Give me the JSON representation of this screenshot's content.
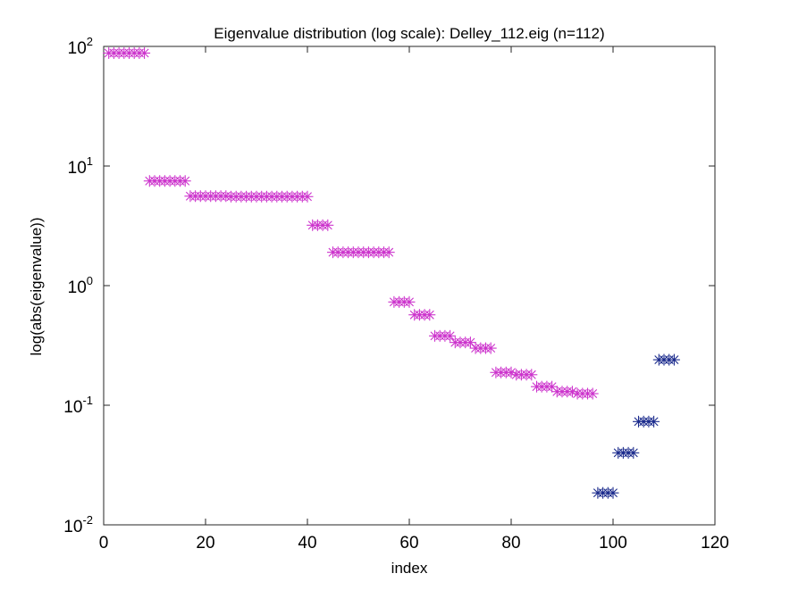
{
  "chart_data": {
    "type": "scatter",
    "title": "Eigenvalue distribution (log scale): Delley_112.eig (n=112)",
    "xlabel": "index",
    "ylabel": "log(abs(eigenvalue))",
    "xlim": [
      0,
      120
    ],
    "ylim": [
      0.01,
      100
    ],
    "yscale": "log",
    "grid": false,
    "marker": "asterisk",
    "x_ticks": [
      0,
      20,
      40,
      60,
      80,
      100,
      120
    ],
    "y_ticks": [
      {
        "value": 0.01,
        "base": "10",
        "exp": "-2"
      },
      {
        "value": 0.1,
        "base": "10",
        "exp": "-1"
      },
      {
        "value": 1,
        "base": "10",
        "exp": "0"
      },
      {
        "value": 10,
        "base": "10",
        "exp": "1"
      },
      {
        "value": 100,
        "base": "10",
        "exp": "2"
      }
    ],
    "series": [
      {
        "color": "#cc33cc",
        "points": [
          [
            1,
            88
          ],
          [
            2,
            88
          ],
          [
            3,
            88
          ],
          [
            4,
            88
          ],
          [
            5,
            88
          ],
          [
            6,
            88
          ],
          [
            7,
            88
          ],
          [
            8,
            88
          ],
          [
            9,
            7.5
          ],
          [
            10,
            7.5
          ],
          [
            11,
            7.5
          ],
          [
            12,
            7.5
          ],
          [
            13,
            7.5
          ],
          [
            14,
            7.5
          ],
          [
            15,
            7.5
          ],
          [
            16,
            7.5
          ],
          [
            17,
            5.6
          ],
          [
            18,
            5.6
          ],
          [
            19,
            5.6
          ],
          [
            20,
            5.6
          ],
          [
            21,
            5.6
          ],
          [
            22,
            5.6
          ],
          [
            23,
            5.6
          ],
          [
            24,
            5.6
          ],
          [
            25,
            5.55
          ],
          [
            26,
            5.55
          ],
          [
            27,
            5.55
          ],
          [
            28,
            5.55
          ],
          [
            29,
            5.55
          ],
          [
            30,
            5.55
          ],
          [
            31,
            5.55
          ],
          [
            32,
            5.55
          ],
          [
            33,
            5.55
          ],
          [
            34,
            5.55
          ],
          [
            35,
            5.55
          ],
          [
            36,
            5.55
          ],
          [
            37,
            5.55
          ],
          [
            38,
            5.55
          ],
          [
            39,
            5.55
          ],
          [
            40,
            5.55
          ],
          [
            41,
            3.2
          ],
          [
            42,
            3.2
          ],
          [
            43,
            3.2
          ],
          [
            44,
            3.2
          ],
          [
            45,
            1.9
          ],
          [
            46,
            1.9
          ],
          [
            47,
            1.9
          ],
          [
            48,
            1.9
          ],
          [
            49,
            1.9
          ],
          [
            50,
            1.9
          ],
          [
            51,
            1.9
          ],
          [
            52,
            1.9
          ],
          [
            53,
            1.9
          ],
          [
            54,
            1.9
          ],
          [
            55,
            1.9
          ],
          [
            56,
            1.9
          ],
          [
            57,
            0.73
          ],
          [
            58,
            0.73
          ],
          [
            59,
            0.73
          ],
          [
            60,
            0.73
          ],
          [
            61,
            0.57
          ],
          [
            62,
            0.57
          ],
          [
            63,
            0.57
          ],
          [
            64,
            0.57
          ],
          [
            65,
            0.38
          ],
          [
            66,
            0.38
          ],
          [
            67,
            0.38
          ],
          [
            68,
            0.38
          ],
          [
            69,
            0.335
          ],
          [
            70,
            0.335
          ],
          [
            71,
            0.335
          ],
          [
            72,
            0.335
          ],
          [
            73,
            0.3
          ],
          [
            74,
            0.3
          ],
          [
            75,
            0.3
          ],
          [
            76,
            0.3
          ],
          [
            77,
            0.188
          ],
          [
            78,
            0.188
          ],
          [
            79,
            0.188
          ],
          [
            80,
            0.188
          ],
          [
            81,
            0.18
          ],
          [
            82,
            0.18
          ],
          [
            83,
            0.18
          ],
          [
            84,
            0.18
          ],
          [
            85,
            0.143
          ],
          [
            86,
            0.143
          ],
          [
            87,
            0.143
          ],
          [
            88,
            0.143
          ],
          [
            89,
            0.13
          ],
          [
            90,
            0.13
          ],
          [
            91,
            0.13
          ],
          [
            92,
            0.13
          ],
          [
            93,
            0.125
          ],
          [
            94,
            0.125
          ],
          [
            95,
            0.125
          ],
          [
            96,
            0.125
          ]
        ]
      },
      {
        "color": "#1a2a8c",
        "points": [
          [
            97,
            0.0185
          ],
          [
            98,
            0.0185
          ],
          [
            99,
            0.0185
          ],
          [
            100,
            0.0185
          ],
          [
            101,
            0.04
          ],
          [
            102,
            0.04
          ],
          [
            103,
            0.04
          ],
          [
            104,
            0.04
          ],
          [
            105,
            0.073
          ],
          [
            106,
            0.073
          ],
          [
            107,
            0.073
          ],
          [
            108,
            0.073
          ],
          [
            109,
            0.24
          ],
          [
            110,
            0.24
          ],
          [
            111,
            0.24
          ],
          [
            112,
            0.24
          ]
        ]
      }
    ]
  }
}
